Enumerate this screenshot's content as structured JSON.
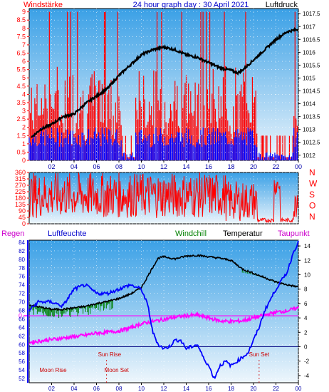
{
  "chart_data": [
    {
      "type": "line",
      "title": "24 hour graph day : 30 April 2021",
      "y_left_label": "Windstärke",
      "y_right_label": "Luftdruck",
      "x_ticks": [
        "02",
        "04",
        "06",
        "08",
        "10",
        "12",
        "14",
        "16",
        "18",
        "20",
        "22",
        "00"
      ],
      "y_left_ticks": [
        "0",
        "0.5",
        "1",
        "1.5",
        "2",
        "2.5",
        "3",
        "3.5",
        "4",
        "4.5",
        "5",
        "5.5",
        "6",
        "6.5",
        "7",
        "7.5",
        "8",
        "8.5",
        "9"
      ],
      "y_right_ticks": [
        "1012",
        "1012.5",
        "1013",
        "1013.5",
        "1014",
        "1014.5",
        "1015",
        "1015.5",
        "1016",
        "1016.5",
        "1017",
        "1017.5"
      ],
      "ylim_left": [
        0,
        9.2
      ],
      "ylim_right": [
        1011.8,
        1017.7
      ],
      "colors": {
        "gust": "#ff0000",
        "wind": "#0000ff",
        "pressure": "#000000",
        "background_top": "#3aa0e6",
        "background_bottom": "#eaf4fb"
      },
      "series": [
        {
          "name": "Luftdruck",
          "x": [
            0.2,
            1,
            2,
            3,
            4,
            5,
            6,
            7,
            8,
            9,
            10,
            11,
            12,
            13,
            14,
            15,
            16,
            17,
            18,
            18.6,
            19,
            20,
            21,
            22,
            23,
            24
          ],
          "values": [
            1012.7,
            1013.0,
            1013.2,
            1013.5,
            1013.6,
            1014.0,
            1014.3,
            1014.6,
            1015.1,
            1015.5,
            1015.9,
            1016.1,
            1016.2,
            1016.1,
            1015.9,
            1015.8,
            1015.6,
            1015.4,
            1015.3,
            1015.2,
            1015.3,
            1015.7,
            1016.1,
            1016.5,
            1016.8,
            1016.9
          ]
        }
      ]
    },
    {
      "type": "bar",
      "y_ticks": [
        "0",
        "45",
        "90",
        "135",
        "180",
        "225",
        "270",
        "315",
        "360"
      ],
      "y_right_ticks": [
        "N",
        "W",
        "S",
        "O",
        "N"
      ],
      "ylim": [
        0,
        360
      ],
      "colors": {
        "direction": "#ff0000"
      }
    },
    {
      "type": "line",
      "labels": {
        "regen": "Regen",
        "luftfeuchte": "Luftfeuchte",
        "windchill": "Windchill",
        "temperatur": "Temperatur",
        "taupunkt": "Taupunkt"
      },
      "y_left_ticks": [
        "52",
        "54",
        "56",
        "58",
        "60",
        "62",
        "64",
        "66",
        "68",
        "70",
        "72",
        "74",
        "76",
        "78",
        "80",
        "82",
        "84"
      ],
      "y_right_ticks": [
        "-4",
        "-2",
        "0",
        "2",
        "4",
        "6",
        "8",
        "10",
        "12",
        "14"
      ],
      "ylim_left": [
        51,
        84.5
      ],
      "ylim_right": [
        -5,
        14.8
      ],
      "rain_marker": "0",
      "x_ticks": [
        "02",
        "04",
        "06",
        "08",
        "10",
        "12",
        "14",
        "16",
        "18",
        "20",
        "22",
        "00"
      ],
      "annotations": [
        "Sun Rise",
        "Sun Set",
        "Moon Rise",
        "Moon Set"
      ],
      "bottom_labels": [
        "Moon Rise",
        "Moon Set",
        "Sun Rise",
        "Sun Set"
      ],
      "sun_rise_hour": 6.4,
      "sun_set_hour": 20.5,
      "moon_rise_hour": 1.3,
      "moon_set_hour": 6.9,
      "colors": {
        "humidity": "#0000ff",
        "temperature": "#000000",
        "windchill": "#008000",
        "dewpoint": "#ff00ff",
        "rain": "#ff00ff"
      },
      "series": [
        {
          "name": "Luftfeuchte",
          "x": [
            0,
            0.8,
            2,
            3,
            4,
            5,
            6,
            7,
            8,
            9,
            10,
            10.6,
            11,
            11.5,
            12,
            12.5,
            13,
            13.5,
            14,
            15,
            15.5,
            16,
            16.5,
            17,
            17.5,
            18,
            18.5,
            19,
            19.5,
            20,
            20.5,
            21,
            22,
            23,
            23.6,
            24
          ],
          "values": [
            68,
            70,
            70,
            69,
            73,
            74,
            72,
            72,
            73,
            74,
            73,
            69,
            63,
            60,
            59,
            59.5,
            61,
            61,
            59,
            60,
            57,
            55,
            52,
            55,
            56,
            55,
            56,
            57,
            58,
            61,
            64,
            68,
            73,
            77,
            82,
            84
          ]
        },
        {
          "name": "Temperatur",
          "x": [
            0,
            1,
            2,
            3,
            4,
            5,
            6,
            7,
            8,
            9,
            10,
            11,
            11.5,
            12,
            13,
            14,
            15,
            16,
            17,
            18,
            19,
            20,
            21,
            22,
            23,
            24
          ],
          "values": [
            5.8,
            5.5,
            5.2,
            5.2,
            5.4,
            5.6,
            6.0,
            6.3,
            6.7,
            7.3,
            8.2,
            11.0,
            12.3,
            12.5,
            12.2,
            12.6,
            12.7,
            12.5,
            12.3,
            12.0,
            10.8,
            10.2,
            9.6,
            9.0,
            8.6,
            8.3
          ]
        },
        {
          "name": "Windchill",
          "x": [
            0,
            1,
            2,
            3,
            4,
            5,
            6,
            7,
            7.5,
            19,
            20,
            21,
            22,
            23,
            24
          ],
          "values": [
            5.0,
            4.8,
            4.6,
            4.7,
            4.8,
            5.2,
            5.9,
            6.2,
            6.5,
            10.3,
            10.0,
            9.5,
            8.9,
            8.5,
            8.3
          ]
        },
        {
          "name": "Taupunkt",
          "x": [
            0,
            1,
            2,
            3,
            4,
            5,
            6,
            7,
            8,
            9,
            10,
            11,
            12,
            13,
            14,
            15,
            16,
            17,
            18,
            19,
            20,
            21,
            22,
            23,
            24
          ],
          "values": [
            0.6,
            0.8,
            1.0,
            1.2,
            1.4,
            1.6,
            1.9,
            2.0,
            2.2,
            2.6,
            3.2,
            3.5,
            3.8,
            4.1,
            4.3,
            4.4,
            4.0,
            3.6,
            3.5,
            3.6,
            4.0,
            4.4,
            4.8,
            5.0,
            5.4
          ]
        }
      ]
    }
  ]
}
